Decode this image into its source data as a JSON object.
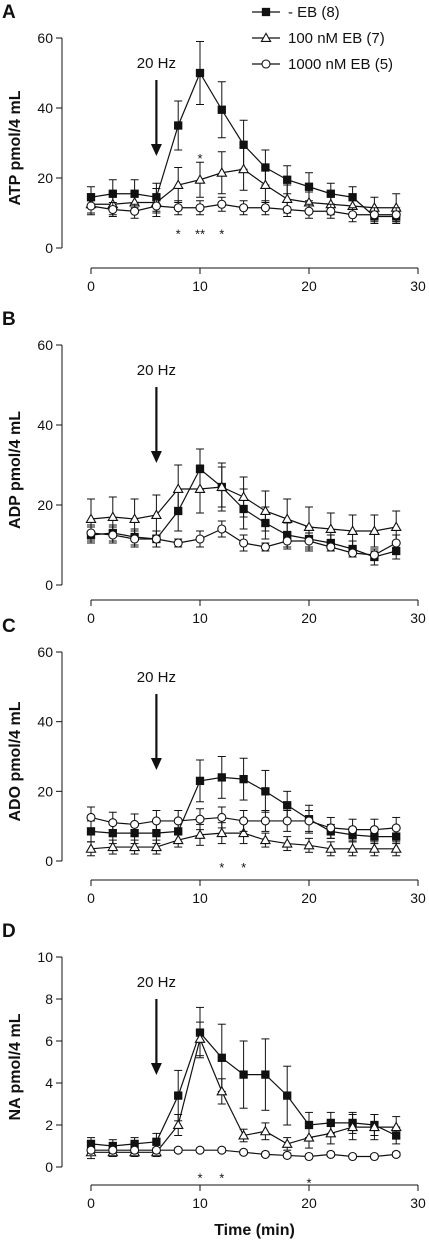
{
  "figure": {
    "stimulus_label": "20 Hz",
    "stimulus_time": 6,
    "legend_location": "top-right"
  },
  "chart_data": [
    {
      "panel": "A",
      "type": "line",
      "ylabel": "ATP pmol/4 mL",
      "xlabel": "",
      "xlim": [
        0,
        30
      ],
      "ylim": [
        0,
        60
      ],
      "xticks": [
        0,
        10,
        20,
        30
      ],
      "yticks": [
        0,
        20,
        40,
        60
      ],
      "x": [
        0,
        2,
        4,
        6,
        8,
        10,
        12,
        14,
        16,
        18,
        20,
        22,
        24,
        26,
        28
      ],
      "series": [
        {
          "name": "- EB (8)",
          "marker": "square",
          "values": [
            14.5,
            15.5,
            15.5,
            14.5,
            35,
            50,
            39.5,
            29.5,
            23,
            19.5,
            17.5,
            15.5,
            14.5,
            9,
            9
          ],
          "errors": [
            3,
            4,
            4,
            4,
            7,
            9,
            8,
            7,
            5,
            4,
            4,
            3,
            3,
            2,
            2
          ]
        },
        {
          "name": "100 nM EB (7)",
          "marker": "triangle",
          "values": [
            12.5,
            12.5,
            13,
            13,
            18,
            19.5,
            21.5,
            22.5,
            18,
            14,
            13,
            12.5,
            12,
            11.5,
            11.5
          ],
          "errors": [
            3,
            3,
            3,
            4,
            5,
            5,
            6,
            6,
            5,
            4,
            3,
            3,
            3,
            3,
            4
          ]
        },
        {
          "name": "1000 nM EB (5)",
          "marker": "circle",
          "values": [
            12,
            11,
            10.5,
            12,
            11.5,
            11.5,
            12.5,
            11.5,
            11.5,
            11,
            10.5,
            10.5,
            9.5,
            9.5,
            9.5
          ],
          "errors": [
            2,
            2,
            2,
            2,
            2,
            2,
            2,
            2,
            2,
            2,
            2,
            2,
            2,
            2,
            2
          ]
        }
      ],
      "annotations": [
        {
          "text": "*",
          "x": 8,
          "y": 4.5
        },
        {
          "text": "**",
          "x": 10,
          "y": 4.5
        },
        {
          "text": "*",
          "x": 12,
          "y": 4.5
        },
        {
          "text": "*",
          "x": 10,
          "y": 26
        }
      ]
    },
    {
      "panel": "B",
      "type": "line",
      "ylabel": "ADP pmol/4 mL",
      "xlabel": "",
      "xlim": [
        0,
        30
      ],
      "ylim": [
        0,
        60
      ],
      "xticks": [
        0,
        10,
        20,
        30
      ],
      "yticks": [
        0,
        20,
        40,
        60
      ],
      "x": [
        0,
        2,
        4,
        6,
        8,
        10,
        12,
        14,
        16,
        18,
        20,
        22,
        24,
        26,
        28
      ],
      "series": [
        {
          "name": "- EB (8)",
          "marker": "square",
          "values": [
            12.5,
            13,
            12,
            11.5,
            18.5,
            29,
            24.5,
            19,
            15.5,
            12.5,
            11.5,
            10.5,
            9,
            7,
            8.5
          ],
          "errors": [
            2,
            2,
            2,
            2,
            5,
            5,
            5,
            5,
            4,
            3,
            3,
            2,
            2,
            2,
            2
          ]
        },
        {
          "name": "100 nM EB (7)",
          "marker": "triangle",
          "values": [
            16.5,
            17,
            16.5,
            17.5,
            24,
            24,
            24.5,
            22,
            18.5,
            16.5,
            14.5,
            14,
            13.5,
            13.5,
            14.5
          ],
          "errors": [
            5,
            5,
            5,
            5,
            6,
            6,
            6,
            5,
            5,
            5,
            5,
            4,
            4,
            4,
            4
          ]
        },
        {
          "name": "1000 nM EB (5)",
          "marker": "circle",
          "values": [
            13,
            12.5,
            11.5,
            11.5,
            10.5,
            11.5,
            14,
            10.5,
            9.5,
            11,
            11,
            9.5,
            8,
            7.5,
            10.5
          ],
          "errors": [
            2,
            2,
            2,
            2,
            1,
            2,
            2,
            2,
            1,
            2,
            2,
            1,
            1,
            1,
            2
          ]
        }
      ],
      "annotations": []
    },
    {
      "panel": "C",
      "type": "line",
      "ylabel": "ADO pmol/4 mL",
      "xlabel": "",
      "xlim": [
        0,
        30
      ],
      "ylim": [
        0,
        60
      ],
      "xticks": [
        0,
        10,
        20,
        30
      ],
      "yticks": [
        0,
        20,
        40,
        60
      ],
      "x": [
        0,
        2,
        4,
        6,
        8,
        10,
        12,
        14,
        16,
        18,
        20,
        22,
        24,
        26,
        28
      ],
      "series": [
        {
          "name": "- EB (8)",
          "marker": "square",
          "values": [
            8.5,
            8,
            8,
            8,
            8.5,
            23,
            24,
            23.5,
            20,
            16,
            12,
            8.5,
            7.5,
            7,
            7
          ],
          "errors": [
            3,
            3,
            3,
            3,
            3,
            6,
            6,
            6,
            6,
            4,
            4,
            2,
            2,
            2,
            2
          ]
        },
        {
          "name": "100 nM EB (7)",
          "marker": "triangle",
          "values": [
            3.5,
            4,
            4,
            4,
            6,
            7.5,
            8,
            8,
            6,
            5,
            4.5,
            3.5,
            3.5,
            3.5,
            3.5
          ],
          "errors": [
            2,
            2,
            2,
            2,
            2,
            3,
            3,
            3,
            2,
            2,
            2,
            2,
            2,
            2,
            2
          ]
        },
        {
          "name": "1000 nM EB (5)",
          "marker": "circle",
          "values": [
            12.5,
            11,
            10.5,
            11.5,
            11.5,
            12,
            12.5,
            11.5,
            11.5,
            11.5,
            11.5,
            9.5,
            9,
            9,
            9.5
          ],
          "errors": [
            3,
            3,
            3,
            3,
            3,
            3,
            3,
            3,
            3,
            3,
            3,
            3,
            3,
            3,
            3
          ]
        }
      ],
      "annotations": [
        {
          "text": "*",
          "x": 12,
          "y": -1.5
        },
        {
          "text": "*",
          "x": 14,
          "y": -1.5
        }
      ]
    },
    {
      "panel": "D",
      "type": "line",
      "ylabel": "NA pmol/4 mL",
      "xlabel": "Time (min)",
      "xlim": [
        0,
        30
      ],
      "ylim": [
        0,
        10
      ],
      "xticks": [
        0,
        10,
        20,
        30
      ],
      "yticks": [
        0,
        2,
        4,
        6,
        8,
        10
      ],
      "x": [
        0,
        2,
        4,
        6,
        8,
        10,
        12,
        14,
        16,
        18,
        20,
        22,
        24,
        26,
        28
      ],
      "series": [
        {
          "name": "- EB (8)",
          "marker": "square",
          "values": [
            1.1,
            1,
            1.1,
            1.2,
            3.4,
            6.4,
            5.2,
            4.4,
            4.4,
            3.4,
            2,
            2.1,
            2.1,
            2,
            1.5
          ],
          "errors": [
            0.3,
            0.3,
            0.3,
            0.4,
            1.2,
            1.2,
            1.6,
            1.6,
            1.7,
            1.4,
            0.6,
            0.5,
            0.5,
            0.5,
            0.4
          ]
        },
        {
          "name": "100 nM EB (7)",
          "marker": "triangle",
          "values": [
            0.7,
            0.7,
            0.7,
            0.7,
            2,
            6.1,
            3.6,
            1.5,
            1.7,
            1.1,
            1.4,
            1.6,
            1.9,
            1.9,
            1.9
          ],
          "errors": [
            0.3,
            0.2,
            0.2,
            0.2,
            0.5,
            0.8,
            0.6,
            0.3,
            0.4,
            0.3,
            0.5,
            0.5,
            0.6,
            0.6,
            0.5
          ]
        },
        {
          "name": "1000 nM EB (5)",
          "marker": "circle",
          "values": [
            0.8,
            0.8,
            0.8,
            0.8,
            0.8,
            0.8,
            0.8,
            0.7,
            0.6,
            0.55,
            0.5,
            0.6,
            0.5,
            0.5,
            0.6
          ],
          "errors": [
            0.1,
            0.1,
            0.1,
            0.1,
            0.1,
            0.1,
            0.1,
            0.1,
            0.1,
            0.1,
            0.1,
            0.1,
            0.1,
            0.1,
            0.1
          ]
        }
      ],
      "annotations": [
        {
          "text": "*",
          "x": 10,
          "y": -0.45
        },
        {
          "text": "*",
          "x": 12,
          "y": -0.45
        },
        {
          "text": "*",
          "x": 20,
          "y": -0.7
        }
      ]
    }
  ]
}
